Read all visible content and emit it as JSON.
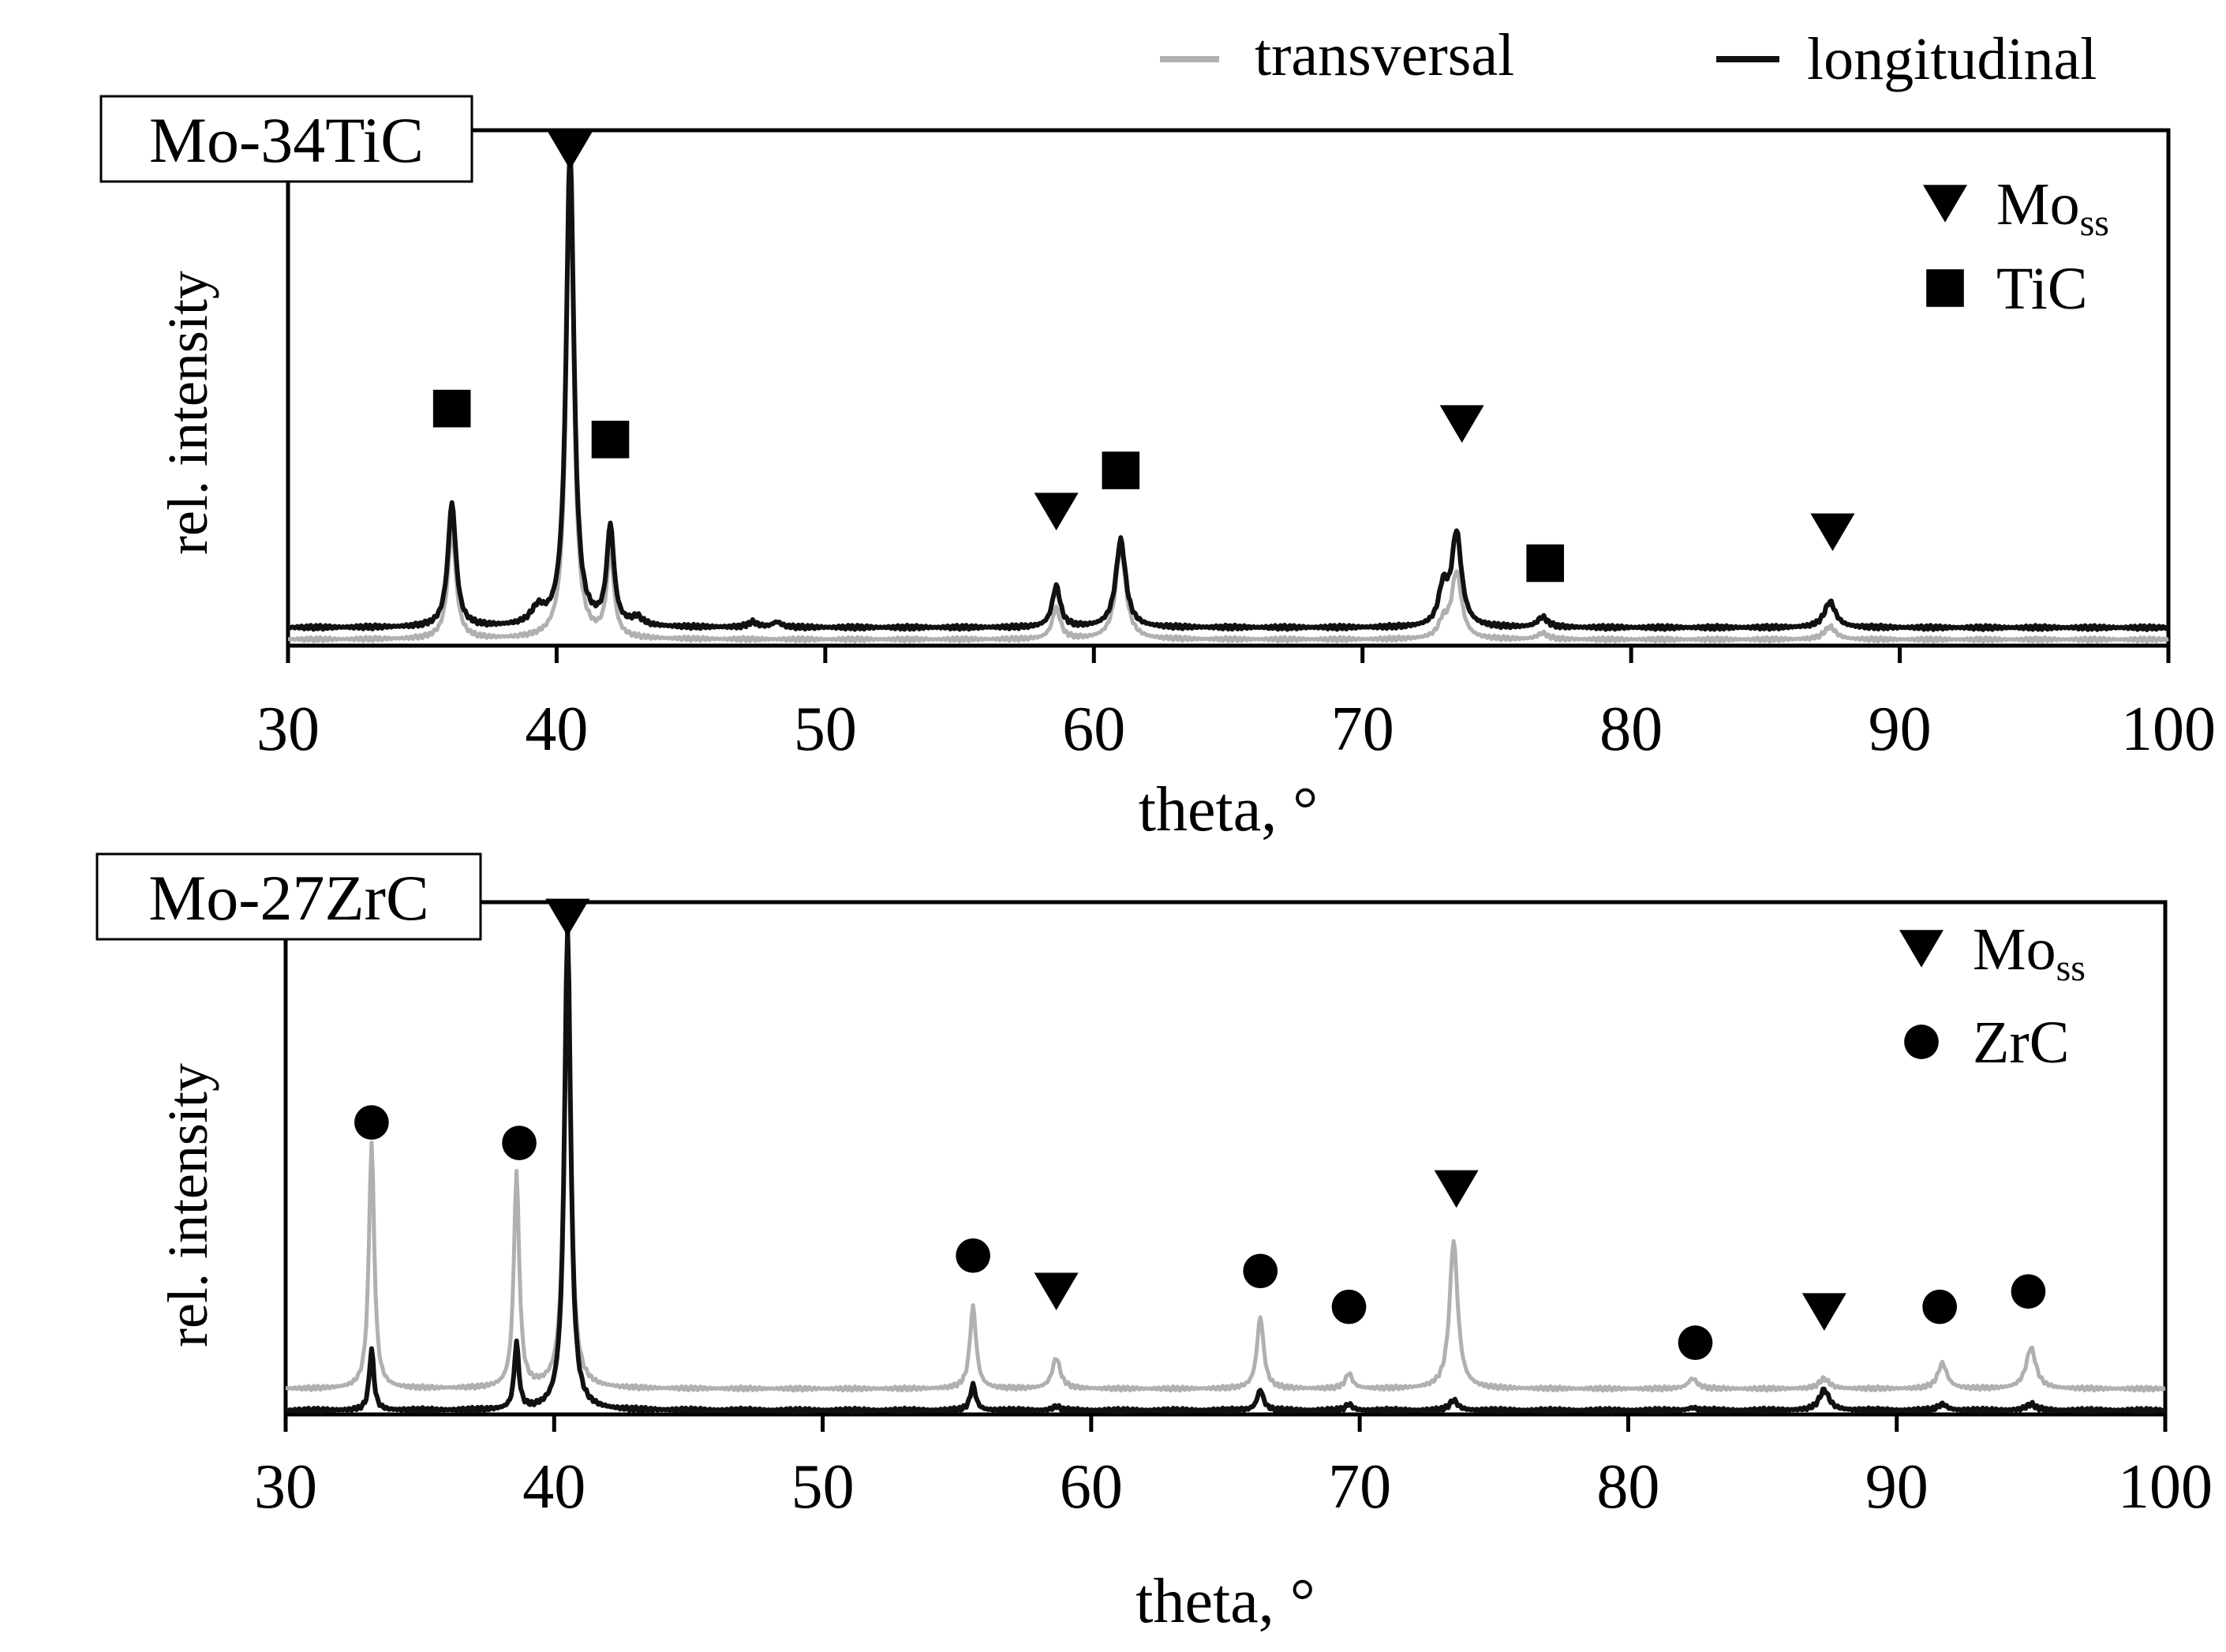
{
  "legend": [
    {
      "label": "transversal",
      "color": "#b0b0b0"
    },
    {
      "label": "longitudinal",
      "color": "#111111"
    }
  ],
  "chart_data": [
    {
      "type": "line",
      "panel_label": "Mo-34TiC",
      "xlabel": "theta, °",
      "ylabel": "rel. intensity",
      "xlim": [
        30,
        100
      ],
      "ylim": [
        0,
        100
      ],
      "xticks": [
        30,
        40,
        50,
        60,
        70,
        80,
        90,
        100
      ],
      "series": [
        {
          "name": "transversal",
          "baseline": 1.2,
          "peaks": [
            {
              "x": 36.1,
              "h": 21,
              "w": 0.18
            },
            {
              "x": 40.5,
              "h": 92,
              "w": 0.16
            },
            {
              "x": 42.0,
              "h": 16,
              "w": 0.16
            },
            {
              "x": 58.6,
              "h": 6,
              "w": 0.18
            },
            {
              "x": 61.0,
              "h": 18,
              "w": 0.22
            },
            {
              "x": 73.0,
              "h": 3,
              "w": 0.2
            },
            {
              "x": 73.5,
              "h": 13,
              "w": 0.22
            },
            {
              "x": 76.7,
              "h": 1.2,
              "w": 0.22
            },
            {
              "x": 87.4,
              "h": 2.5,
              "w": 0.25
            }
          ]
        },
        {
          "name": "longitudinal",
          "baseline": 3.5,
          "peaks": [
            {
              "x": 36.1,
              "h": 24,
              "w": 0.18
            },
            {
              "x": 39.3,
              "h": 3,
              "w": 0.3
            },
            {
              "x": 40.5,
              "h": 93,
              "w": 0.17
            },
            {
              "x": 42.0,
              "h": 19,
              "w": 0.16
            },
            {
              "x": 43.0,
              "h": 1.5,
              "w": 0.25
            },
            {
              "x": 47.3,
              "h": 1,
              "w": 0.2
            },
            {
              "x": 48.2,
              "h": 1,
              "w": 0.2
            },
            {
              "x": 58.6,
              "h": 8,
              "w": 0.18
            },
            {
              "x": 61.0,
              "h": 17,
              "w": 0.22
            },
            {
              "x": 73.0,
              "h": 7,
              "w": 0.2
            },
            {
              "x": 73.5,
              "h": 18,
              "w": 0.22
            },
            {
              "x": 76.7,
              "h": 2,
              "w": 0.22
            },
            {
              "x": 87.4,
              "h": 5,
              "w": 0.25
            }
          ]
        }
      ],
      "annotations": [
        {
          "phase": "Mo_ss",
          "marker": "triangle",
          "x": 40.5,
          "y": 96
        },
        {
          "phase": "TiC",
          "marker": "square",
          "x": 36.1,
          "y": 46
        },
        {
          "phase": "TiC",
          "marker": "square",
          "x": 42.0,
          "y": 40
        },
        {
          "phase": "Mo_ss",
          "marker": "triangle",
          "x": 58.6,
          "y": 26
        },
        {
          "phase": "TiC",
          "marker": "square",
          "x": 61.0,
          "y": 34
        },
        {
          "phase": "Mo_ss",
          "marker": "triangle",
          "x": 73.7,
          "y": 43
        },
        {
          "phase": "TiC",
          "marker": "square",
          "x": 76.8,
          "y": 16
        },
        {
          "phase": "Mo_ss",
          "marker": "triangle",
          "x": 87.5,
          "y": 22
        }
      ],
      "phase_legend": [
        {
          "marker": "triangle",
          "label": "Mo",
          "sub": "ss"
        },
        {
          "marker": "square",
          "label": "TiC",
          "sub": ""
        }
      ]
    },
    {
      "type": "line",
      "panel_label": "Mo-27ZrC",
      "xlabel": "theta, °",
      "ylabel": "rel. intensity",
      "xlim": [
        30,
        100
      ],
      "ylim": [
        0,
        100
      ],
      "xticks": [
        30,
        40,
        50,
        60,
        70,
        80,
        90,
        100
      ],
      "series": [
        {
          "name": "transversal",
          "baseline": 5,
          "peaks": [
            {
              "x": 33.2,
              "h": 48,
              "w": 0.12
            },
            {
              "x": 38.6,
              "h": 42,
              "w": 0.12
            },
            {
              "x": 40.5,
              "h": 90,
              "w": 0.14
            },
            {
              "x": 55.6,
              "h": 16,
              "w": 0.14
            },
            {
              "x": 58.7,
              "h": 6,
              "w": 0.18
            },
            {
              "x": 66.3,
              "h": 14,
              "w": 0.15
            },
            {
              "x": 69.6,
              "h": 3,
              "w": 0.15
            },
            {
              "x": 73.5,
              "h": 29,
              "w": 0.18
            },
            {
              "x": 82.4,
              "h": 2,
              "w": 0.2
            },
            {
              "x": 87.3,
              "h": 2,
              "w": 0.22
            },
            {
              "x": 91.7,
              "h": 5,
              "w": 0.2
            },
            {
              "x": 95.0,
              "h": 8,
              "w": 0.22
            }
          ]
        },
        {
          "name": "longitudinal",
          "baseline": 0.8,
          "peaks": [
            {
              "x": 33.2,
              "h": 12,
              "w": 0.1
            },
            {
              "x": 38.6,
              "h": 13,
              "w": 0.1
            },
            {
              "x": 40.5,
              "h": 94,
              "w": 0.14
            },
            {
              "x": 55.6,
              "h": 5,
              "w": 0.12
            },
            {
              "x": 58.7,
              "h": 0.8,
              "w": 0.15
            },
            {
              "x": 66.3,
              "h": 4,
              "w": 0.14
            },
            {
              "x": 69.6,
              "h": 1.2,
              "w": 0.15
            },
            {
              "x": 73.5,
              "h": 2,
              "w": 0.18
            },
            {
              "x": 82.4,
              "h": 0.5,
              "w": 0.2
            },
            {
              "x": 87.3,
              "h": 4,
              "w": 0.22
            },
            {
              "x": 91.7,
              "h": 1.2,
              "w": 0.2
            },
            {
              "x": 95.0,
              "h": 1.2,
              "w": 0.22
            }
          ]
        }
      ],
      "annotations": [
        {
          "phase": "Mo_ss",
          "marker": "triangle",
          "x": 40.5,
          "y": 97
        },
        {
          "phase": "ZrC",
          "marker": "circle",
          "x": 33.2,
          "y": 57
        },
        {
          "phase": "ZrC",
          "marker": "circle",
          "x": 38.7,
          "y": 53
        },
        {
          "phase": "ZrC",
          "marker": "circle",
          "x": 55.6,
          "y": 31
        },
        {
          "phase": "Mo_ss",
          "marker": "triangle",
          "x": 58.7,
          "y": 24
        },
        {
          "phase": "ZrC",
          "marker": "circle",
          "x": 66.3,
          "y": 28
        },
        {
          "phase": "ZrC",
          "marker": "circle",
          "x": 69.6,
          "y": 21
        },
        {
          "phase": "Mo_ss",
          "marker": "triangle",
          "x": 73.6,
          "y": 44
        },
        {
          "phase": "ZrC",
          "marker": "circle",
          "x": 82.5,
          "y": 14
        },
        {
          "phase": "Mo_ss",
          "marker": "triangle",
          "x": 87.3,
          "y": 20
        },
        {
          "phase": "ZrC",
          "marker": "circle",
          "x": 91.6,
          "y": 21
        },
        {
          "phase": "ZrC",
          "marker": "circle",
          "x": 94.9,
          "y": 24
        }
      ],
      "phase_legend": [
        {
          "marker": "triangle",
          "label": "Mo",
          "sub": "ss"
        },
        {
          "marker": "circle",
          "label": "ZrC",
          "sub": ""
        }
      ]
    }
  ]
}
